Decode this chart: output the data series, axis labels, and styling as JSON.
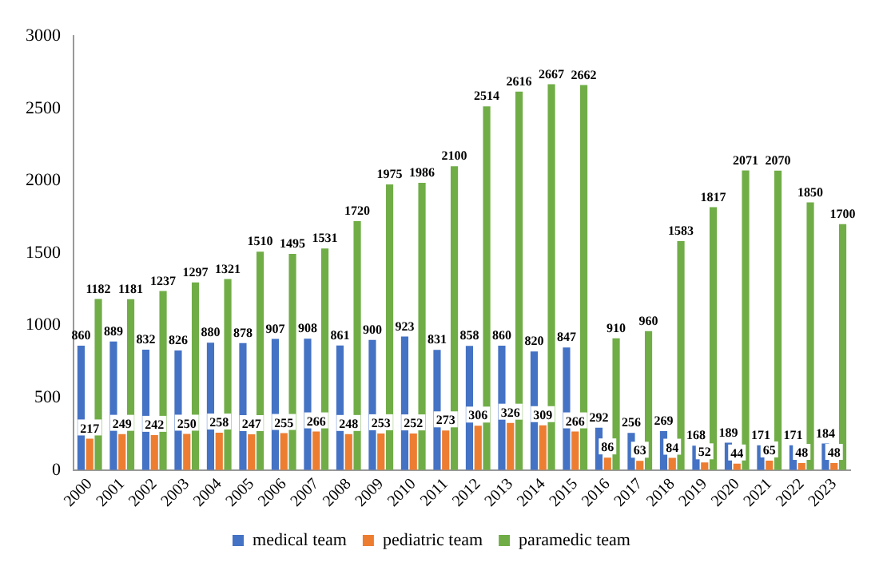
{
  "chart_data": {
    "type": "bar",
    "categories": [
      "2000",
      "2001",
      "2002",
      "2003",
      "2004",
      "2005",
      "2006",
      "2007",
      "2008",
      "2009",
      "2010",
      "2011",
      "2012",
      "2013",
      "2014",
      "2015",
      "2016",
      "2017",
      "2018",
      "2019",
      "2020",
      "2021",
      "2022",
      "2023"
    ],
    "series": [
      {
        "name": "medical team",
        "color": "#4472c4",
        "values": [
          860,
          889,
          832,
          826,
          880,
          878,
          907,
          908,
          861,
          900,
          923,
          831,
          858,
          860,
          820,
          847,
          292,
          256,
          269,
          168,
          189,
          171,
          171,
          184
        ]
      },
      {
        "name": "pediatric team",
        "color": "#ed7d31",
        "values": [
          217,
          249,
          242,
          250,
          258,
          247,
          255,
          266,
          248,
          253,
          252,
          273,
          306,
          326,
          309,
          266,
          86,
          63,
          84,
          52,
          44,
          65,
          48,
          48
        ]
      },
      {
        "name": "paramedic team",
        "color": "#70ad47",
        "values": [
          1182,
          1181,
          1237,
          1297,
          1321,
          1510,
          1495,
          1531,
          1720,
          1975,
          1986,
          2100,
          2514,
          2616,
          2667,
          2662,
          910,
          960,
          1583,
          1817,
          2071,
          2070,
          1850,
          1700
        ]
      }
    ],
    "ylim": [
      0,
      3000
    ],
    "yticks": [
      0,
      500,
      1000,
      1500,
      2000,
      2500,
      3000
    ],
    "grid": false,
    "legend": "bottom",
    "data_labels": true
  }
}
